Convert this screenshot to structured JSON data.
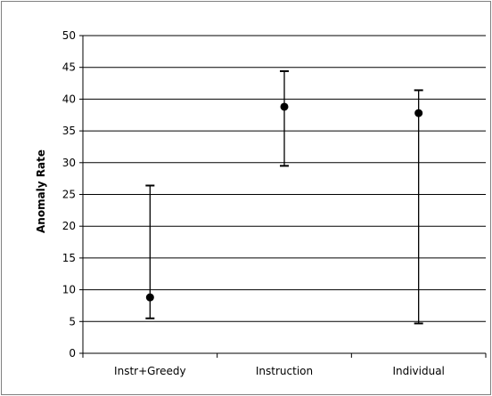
{
  "chart_data": {
    "type": "scatter",
    "title": "",
    "xlabel": "",
    "ylabel": "Anomaly Rate",
    "ylim": [
      0,
      50
    ],
    "yticks": [
      0,
      5,
      10,
      15,
      20,
      25,
      30,
      35,
      40,
      45,
      50
    ],
    "categories": [
      "Instr+Greedy",
      "Instruction",
      "Individual"
    ],
    "values": [
      8.8,
      38.8,
      37.8
    ],
    "error_low": [
      5.5,
      29.5,
      4.7
    ],
    "error_high": [
      26.4,
      44.4,
      41.4
    ],
    "grid": true,
    "legend": "none"
  },
  "colors": {
    "marker": "#000000",
    "gridline": "#000000",
    "background": "#ffffff",
    "frame": "#808080"
  }
}
